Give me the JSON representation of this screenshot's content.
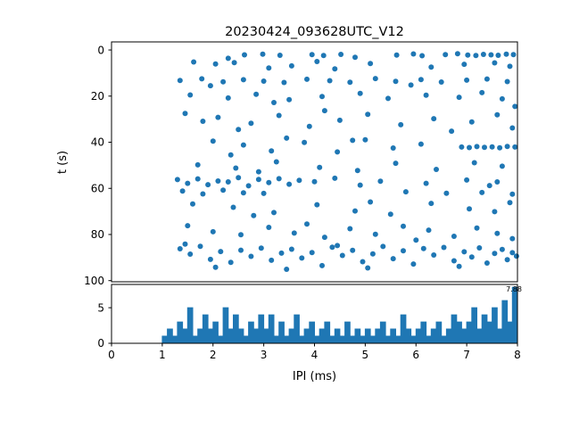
{
  "figure": {
    "title": "20230424_093628UTC_V12",
    "background": "#ffffff",
    "accent_color": "#1f77b4"
  },
  "chart_data": [
    {
      "type": "scatter",
      "title": "20230424_093628UTC_V12",
      "xlabel": "",
      "ylabel": "t (s)",
      "xlim": [
        0,
        8
      ],
      "ylim": [
        -3.5,
        100.5
      ],
      "y_inverted": true,
      "yticks": [
        0,
        20,
        40,
        60,
        80,
        100
      ],
      "marker_color": "#1f77b4",
      "points": [
        [
          2.62,
          2.1
        ],
        [
          2.98,
          1.8
        ],
        [
          3.32,
          2.3
        ],
        [
          3.95,
          2.0
        ],
        [
          4.18,
          2.4
        ],
        [
          4.52,
          1.9
        ],
        [
          5.62,
          2.2
        ],
        [
          5.95,
          1.7
        ],
        [
          6.12,
          2.5
        ],
        [
          6.58,
          2.0
        ],
        [
          6.82,
          1.6
        ],
        [
          7.02,
          2.2
        ],
        [
          7.18,
          2.4
        ],
        [
          7.33,
          1.9
        ],
        [
          7.48,
          2.1
        ],
        [
          7.62,
          2.3
        ],
        [
          7.78,
          1.8
        ],
        [
          7.92,
          2.0
        ],
        [
          2.3,
          3.6
        ],
        [
          4.8,
          3.2
        ],
        [
          1.62,
          5.2
        ],
        [
          2.05,
          6.1
        ],
        [
          2.42,
          5.5
        ],
        [
          3.1,
          7.8
        ],
        [
          3.55,
          6.9
        ],
        [
          4.4,
          8.2
        ],
        [
          5.1,
          5.9
        ],
        [
          6.3,
          7.4
        ],
        [
          6.95,
          6.2
        ],
        [
          7.55,
          5.6
        ],
        [
          7.85,
          7.1
        ],
        [
          4.05,
          5.0
        ],
        [
          1.35,
          13.2
        ],
        [
          1.78,
          12.5
        ],
        [
          2.2,
          13.8
        ],
        [
          2.6,
          12.9
        ],
        [
          3.0,
          13.5
        ],
        [
          3.4,
          14.1
        ],
        [
          3.85,
          12.7
        ],
        [
          4.3,
          13.3
        ],
        [
          4.7,
          14.0
        ],
        [
          5.2,
          12.4
        ],
        [
          5.6,
          13.6
        ],
        [
          6.1,
          12.8
        ],
        [
          6.5,
          13.9
        ],
        [
          7.0,
          13.1
        ],
        [
          7.4,
          12.6
        ],
        [
          7.8,
          13.7
        ],
        [
          1.95,
          15.5
        ],
        [
          5.9,
          15.2
        ],
        [
          1.55,
          19.5
        ],
        [
          2.3,
          20.8
        ],
        [
          2.85,
          19.2
        ],
        [
          3.5,
          21.5
        ],
        [
          4.15,
          20.2
        ],
        [
          4.9,
          18.8
        ],
        [
          5.45,
          21.0
        ],
        [
          6.2,
          19.6
        ],
        [
          6.85,
          20.5
        ],
        [
          7.3,
          18.5
        ],
        [
          7.7,
          21.2
        ],
        [
          7.95,
          24.5
        ],
        [
          3.2,
          22.8
        ],
        [
          1.45,
          27.5
        ],
        [
          2.1,
          29.2
        ],
        [
          2.75,
          31.8
        ],
        [
          3.3,
          28.4
        ],
        [
          3.9,
          33.1
        ],
        [
          4.5,
          30.5
        ],
        [
          5.05,
          27.9
        ],
        [
          5.7,
          32.4
        ],
        [
          6.35,
          29.8
        ],
        [
          7.1,
          31.2
        ],
        [
          7.6,
          28.1
        ],
        [
          7.9,
          33.8
        ],
        [
          2.5,
          34.5
        ],
        [
          4.2,
          26.3
        ],
        [
          6.7,
          35.2
        ],
        [
          1.8,
          30.9
        ],
        [
          2.0,
          39.5
        ],
        [
          2.6,
          41.2
        ],
        [
          3.15,
          43.8
        ],
        [
          3.8,
          40.1
        ],
        [
          4.45,
          44.2
        ],
        [
          5.0,
          38.9
        ],
        [
          5.55,
          42.5
        ],
        [
          6.1,
          40.8
        ],
        [
          6.9,
          42.1
        ],
        [
          7.05,
          42.3
        ],
        [
          7.2,
          41.9
        ],
        [
          7.35,
          42.2
        ],
        [
          7.5,
          42.0
        ],
        [
          7.65,
          42.4
        ],
        [
          7.8,
          41.8
        ],
        [
          7.95,
          42.1
        ],
        [
          2.35,
          45.5
        ],
        [
          4.75,
          39.2
        ],
        [
          3.45,
          38.2
        ],
        [
          1.7,
          49.8
        ],
        [
          2.45,
          51.2
        ],
        [
          3.25,
          48.5
        ],
        [
          4.1,
          50.9
        ],
        [
          4.85,
          52.3
        ],
        [
          5.6,
          49.1
        ],
        [
          6.4,
          51.8
        ],
        [
          7.15,
          48.9
        ],
        [
          7.7,
          50.4
        ],
        [
          2.9,
          52.8
        ],
        [
          1.3,
          56.2
        ],
        [
          1.5,
          57.8
        ],
        [
          1.7,
          55.9
        ],
        [
          1.9,
          58.4
        ],
        [
          2.1,
          56.8
        ],
        [
          2.3,
          57.2
        ],
        [
          2.5,
          55.4
        ],
        [
          2.7,
          58.9
        ],
        [
          2.9,
          56.1
        ],
        [
          3.1,
          57.5
        ],
        [
          3.3,
          55.8
        ],
        [
          3.5,
          58.2
        ],
        [
          3.7,
          56.5
        ],
        [
          1.4,
          61.2
        ],
        [
          1.8,
          62.4
        ],
        [
          2.2,
          60.8
        ],
        [
          2.6,
          61.9
        ],
        [
          3.0,
          62.2
        ],
        [
          4.0,
          57.1
        ],
        [
          4.4,
          55.6
        ],
        [
          4.9,
          58.6
        ],
        [
          5.3,
          56.9
        ],
        [
          5.8,
          61.5
        ],
        [
          6.2,
          57.8
        ],
        [
          6.6,
          62.1
        ],
        [
          7.0,
          56.4
        ],
        [
          7.3,
          61.8
        ],
        [
          7.6,
          57.2
        ],
        [
          7.9,
          62.5
        ],
        [
          7.45,
          58.8
        ],
        [
          1.6,
          66.8
        ],
        [
          2.4,
          68.2
        ],
        [
          3.2,
          70.5
        ],
        [
          4.05,
          67.1
        ],
        [
          4.8,
          69.8
        ],
        [
          5.5,
          71.2
        ],
        [
          6.3,
          66.5
        ],
        [
          7.05,
          68.9
        ],
        [
          7.55,
          70.1
        ],
        [
          7.85,
          66.2
        ],
        [
          2.8,
          71.8
        ],
        [
          5.1,
          65.9
        ],
        [
          1.5,
          76.2
        ],
        [
          2.0,
          78.8
        ],
        [
          2.55,
          80.1
        ],
        [
          3.1,
          76.9
        ],
        [
          3.6,
          79.4
        ],
        [
          4.2,
          81.2
        ],
        [
          4.7,
          77.5
        ],
        [
          5.2,
          79.9
        ],
        [
          5.75,
          76.4
        ],
        [
          6.25,
          78.1
        ],
        [
          6.75,
          80.8
        ],
        [
          7.2,
          77.2
        ],
        [
          7.6,
          79.5
        ],
        [
          7.9,
          81.8
        ],
        [
          3.85,
          75.5
        ],
        [
          6.0,
          82.4
        ],
        [
          1.35,
          86.2
        ],
        [
          1.55,
          88.5
        ],
        [
          1.75,
          85.1
        ],
        [
          1.95,
          90.8
        ],
        [
          2.15,
          87.4
        ],
        [
          2.35,
          92.1
        ],
        [
          2.55,
          86.8
        ],
        [
          2.75,
          89.5
        ],
        [
          2.95,
          85.9
        ],
        [
          3.15,
          91.2
        ],
        [
          3.35,
          88.1
        ],
        [
          3.55,
          86.4
        ],
        [
          3.75,
          90.2
        ],
        [
          3.95,
          87.8
        ],
        [
          4.15,
          93.5
        ],
        [
          4.35,
          85.5
        ],
        [
          4.55,
          89.1
        ],
        [
          4.75,
          86.9
        ],
        [
          4.95,
          91.8
        ],
        [
          5.15,
          88.4
        ],
        [
          5.35,
          85.2
        ],
        [
          5.55,
          90.5
        ],
        [
          5.75,
          87.1
        ],
        [
          5.95,
          92.8
        ],
        [
          6.15,
          86.1
        ],
        [
          6.35,
          88.9
        ],
        [
          6.55,
          85.6
        ],
        [
          6.75,
          91.4
        ],
        [
          6.95,
          87.5
        ],
        [
          7.1,
          89.8
        ],
        [
          7.25,
          85.8
        ],
        [
          7.4,
          92.4
        ],
        [
          7.55,
          88.2
        ],
        [
          7.7,
          86.5
        ],
        [
          7.8,
          90.9
        ],
        [
          7.9,
          87.9
        ],
        [
          7.98,
          89.4
        ],
        [
          2.05,
          94.2
        ],
        [
          3.45,
          95.1
        ],
        [
          5.05,
          94.5
        ],
        [
          6.85,
          93.8
        ],
        [
          1.45,
          84.2
        ],
        [
          4.45,
          84.8
        ]
      ]
    },
    {
      "type": "bar",
      "xlabel": "IPI (ms)",
      "ylabel": "",
      "xlim": [
        0,
        8
      ],
      "ylim": [
        0,
        8.27
      ],
      "xticks": [
        0,
        1,
        2,
        3,
        4,
        5,
        6,
        7,
        8
      ],
      "yticks": [
        0,
        5
      ],
      "bar_color": "#1f77b4",
      "bin_start": 0,
      "bin_width": 0.1,
      "values": [
        0,
        0,
        0,
        0,
        0,
        0,
        0,
        0,
        0,
        0,
        1,
        2,
        1,
        3,
        2,
        5,
        1,
        2,
        4,
        2,
        3,
        1,
        5,
        2,
        4,
        2,
        1,
        3,
        2,
        4,
        2,
        4,
        1,
        3,
        1,
        2,
        4,
        1,
        2,
        3,
        1,
        2,
        3,
        1,
        2,
        1,
        3,
        1,
        2,
        1,
        2,
        1,
        2,
        3,
        1,
        2,
        1,
        4,
        2,
        1,
        2,
        3,
        1,
        2,
        3,
        1,
        2,
        4,
        3,
        2,
        3,
        5,
        2,
        4,
        3,
        5,
        2,
        6,
        3,
        7.88
      ],
      "annotation": {
        "text": "7.88",
        "x": 7.95,
        "y": 7.88
      }
    }
  ]
}
